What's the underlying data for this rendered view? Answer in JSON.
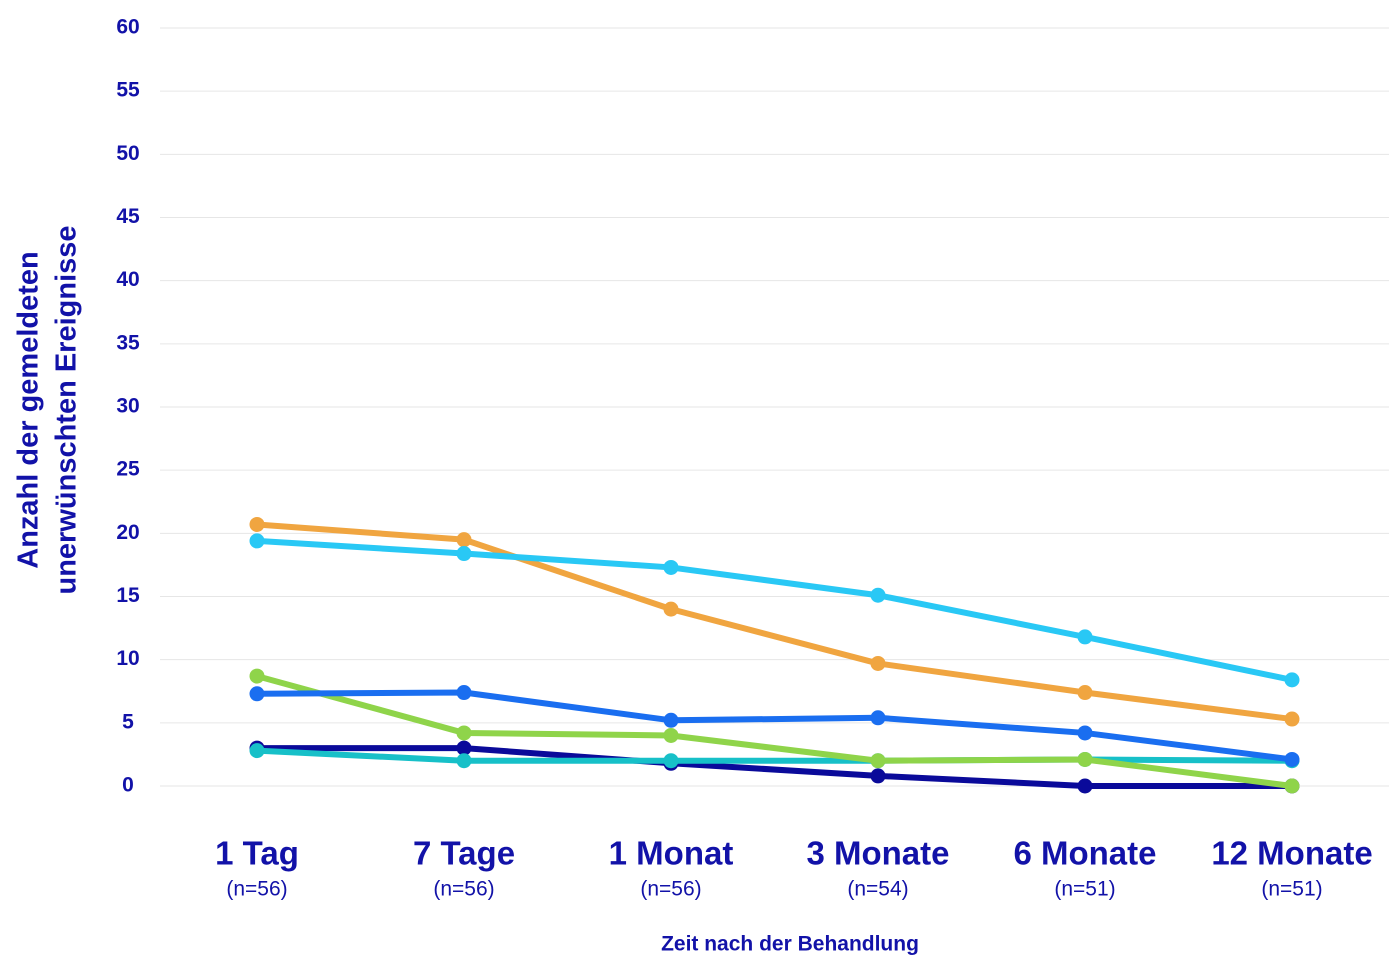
{
  "chart_data": {
    "type": "line",
    "y_label": [
      "Anzahl der gemeldeten",
      "unerwünschten Ereignisse"
    ],
    "x_label": "Zeit nach der Behandlung",
    "categories": [
      "1 Tag",
      "7 Tage",
      "1 Monat",
      "3 Monate",
      "6 Monate",
      "12 Monate"
    ],
    "category_notes": [
      "(n=56)",
      "(n=56)",
      "(n=56)",
      "(n=54)",
      "(n=51)",
      "(n=51)"
    ],
    "ylim": [
      0,
      60
    ],
    "yticks": [
      0,
      5,
      10,
      15,
      20,
      25,
      30,
      35,
      40,
      45,
      50,
      55,
      60
    ],
    "grid": true,
    "series": [
      {
        "color": "#0a0a9a",
        "values": [
          3.0,
          3.0,
          1.8,
          0.8,
          0,
          0
        ]
      },
      {
        "color": "#17c0c8",
        "values": [
          2.8,
          2.0,
          2.0,
          2.0,
          2.1,
          2.0
        ]
      },
      {
        "color": "#8fd44a",
        "values": [
          8.7,
          4.2,
          4.0,
          2.0,
          2.1,
          0
        ]
      },
      {
        "color": "#1a6ef0",
        "values": [
          7.3,
          7.4,
          5.2,
          5.4,
          4.2,
          2.1
        ]
      },
      {
        "color": "#f0a540",
        "values": [
          20.7,
          19.5,
          14.0,
          9.7,
          7.4,
          5.3
        ]
      },
      {
        "color": "#29c8f5",
        "values": [
          19.4,
          18.4,
          17.3,
          15.1,
          11.8,
          8.4
        ]
      }
    ]
  }
}
